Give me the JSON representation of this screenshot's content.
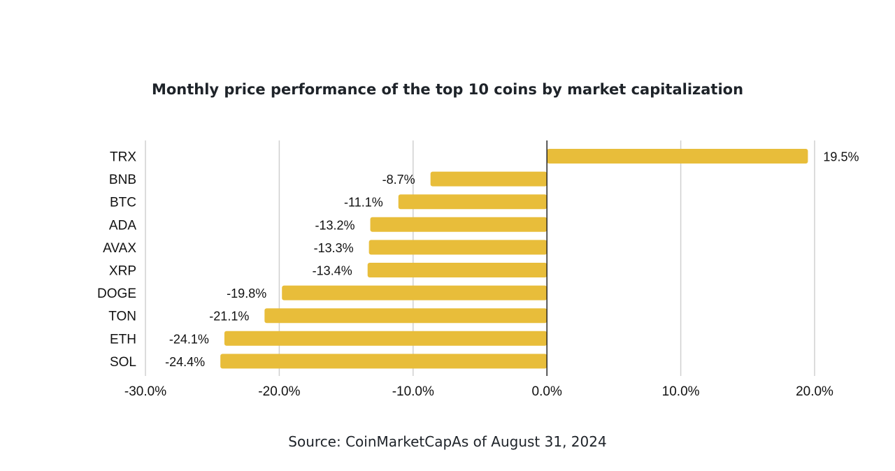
{
  "header": {
    "title": "Monthly price performance of the top 10 coins by market capitalization"
  },
  "footer": {
    "source": "Source: CoinMarketCapAs of August 31, 2024"
  },
  "colors": {
    "bar": "#e8bd3a",
    "grid": "#d0d0d0",
    "zero_line": "#222222",
    "text": "#111111"
  },
  "chart_data": {
    "type": "bar",
    "orientation": "horizontal",
    "title": "Monthly price performance of the top 10 coins by market capitalization",
    "xlabel": "",
    "ylabel": "",
    "categories": [
      "TRX",
      "BNB",
      "BTC",
      "ADA",
      "AVAX",
      "XRP",
      "DOGE",
      "TON",
      "ETH",
      "SOL"
    ],
    "values": [
      19.5,
      -8.7,
      -11.1,
      -13.2,
      -13.3,
      -13.4,
      -19.8,
      -21.1,
      -24.1,
      -24.4
    ],
    "value_labels": [
      "19.5%",
      "-8.7%",
      "-11.1%",
      "-13.2%",
      "-13.3%",
      "-13.4%",
      "-19.8%",
      "-21.1%",
      "-24.1%",
      "-24.4%"
    ],
    "xlim": [
      -30,
      20
    ],
    "xticks": [
      -30,
      -20,
      -10,
      0,
      10,
      20
    ],
    "xtick_labels": [
      "-30.0%",
      "-20.0%",
      "-10.0%",
      "0.0%",
      "10.0%",
      "20.0%"
    ],
    "grid": true,
    "legend": "none"
  }
}
